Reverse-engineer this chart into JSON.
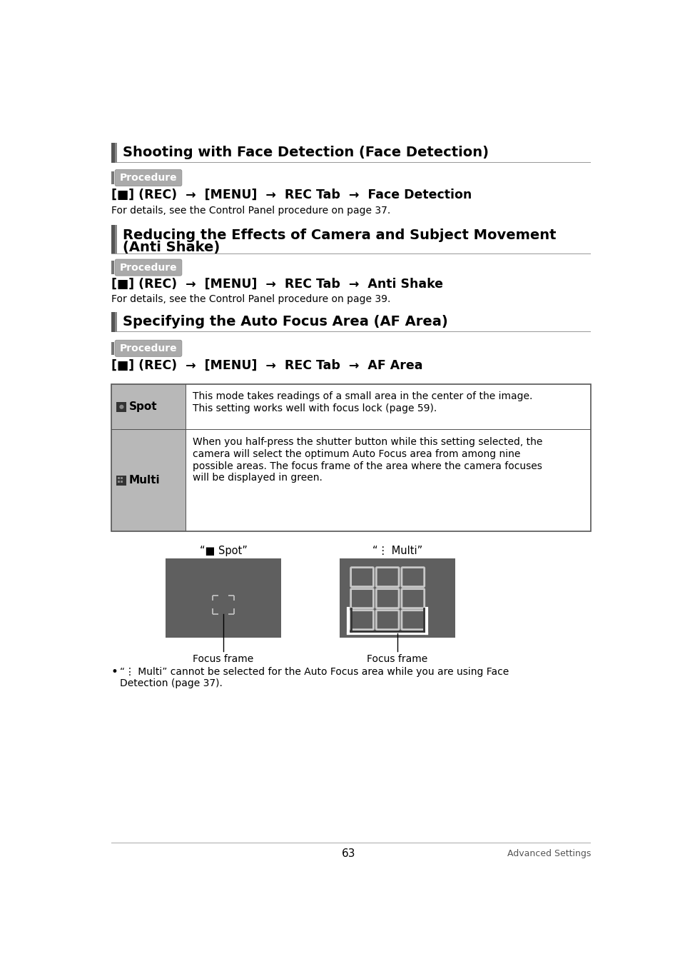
{
  "page_bg": "#ffffff",
  "page_number": "63",
  "page_label_right": "Advanced Settings",
  "section1_title": "Shooting with Face Detection (Face Detection)",
  "section2_title_l1": "Reducing the Effects of Camera and Subject Movement",
  "section2_title_l2": "(Anti Shake)",
  "section3_title": "Specifying the Auto Focus Area (AF Area)",
  "proc_text": "Procedure",
  "cmd1_text": "[■] (REC)  →  [MENU]  →  REC Tab  →  Face Detection",
  "cmd1_detail": "For details, see the Control Panel procedure on page 37.",
  "cmd2_text": "[■] (REC)  →  [MENU]  →  REC Tab  →  Anti Shake",
  "cmd2_detail": "For details, see the Control Panel procedure on page 39.",
  "cmd3_text": "[■] (REC)  →  [MENU]  →  REC Tab  →  AF Area",
  "table_row1_label": "Spot",
  "table_row1_text_l1": "This mode takes readings of a small area in the center of the image.",
  "table_row1_text_l2": "This setting works well with focus lock (page 59).",
  "table_row2_label": "Multi",
  "table_row2_texts": [
    "When you half-press the shutter button while this setting selected, the",
    "camera will select the optimum Auto Focus area from among nine",
    "possible areas. The focus frame of the area where the camera focuses",
    "will be displayed in green."
  ],
  "diagram1_label": "“■ Spot”",
  "diagram2_label": "“⋮ Multi”",
  "focus_frame_label": "Focus frame",
  "bullet_l1": "“⋮ Multi” cannot be selected for the Auto Focus area while you are using Face",
  "bullet_l2": "Detection (page 37).",
  "colors": {
    "black": "#000000",
    "white": "#ffffff",
    "dark_bar": "#555555",
    "proc_bg": "#aaaaaa",
    "proc_text": "#ffffff",
    "section_bar": "#555555",
    "hr_line": "#888888",
    "table_left_bg": "#b8b8b8",
    "table_border": "#555555",
    "diagram_bg": "#5f5f5f",
    "focus_frame_color": "#c8c8c8",
    "footer_line": "#aaaaaa",
    "footer_text": "#555555",
    "cmd_text": "#000000"
  }
}
